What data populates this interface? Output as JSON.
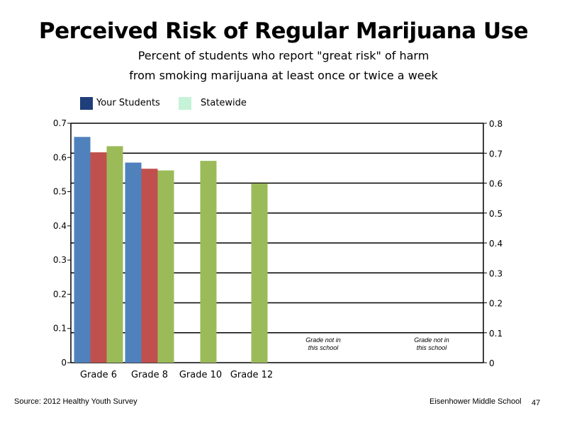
{
  "title": "Perceived Risk of Regular Marijuana Use",
  "subtitle_line1": "Percent of students who report \"great risk\" of harm",
  "subtitle_line2": "from smoking marijuana at least once or twice a week",
  "legend": [
    {
      "label": "Your Students",
      "color": "#1f3f7a"
    },
    {
      "label": "Statewide",
      "color": "#c6f2d8"
    }
  ],
  "chart_data": {
    "type": "bar",
    "title": "Perceived Risk of Regular Marijuana Use",
    "categories": [
      "Grade 6",
      "Grade 8",
      "Grade 10",
      "Grade 12"
    ],
    "series": [
      {
        "color": "#4f81bd",
        "values": [
          0.66,
          0.585,
          null,
          null
        ]
      },
      {
        "color": "#c0504d",
        "values": [
          0.615,
          0.567,
          null,
          null
        ]
      },
      {
        "color": "#9bbb59",
        "values": [
          0.633,
          0.562,
          0.59,
          0.524
        ]
      }
    ],
    "y_left": {
      "min": 0,
      "max": 0.7,
      "ticks": [
        "0",
        "0.1",
        "0.2",
        "0.3",
        "0.4",
        "0.5",
        "0.6",
        "0.7"
      ]
    },
    "y_right": {
      "min": 0,
      "max": 0.8,
      "ticks": [
        "0",
        "0.1",
        "0.2",
        "0.3",
        "0.4",
        "0.5",
        "0.6",
        "0.7",
        "0.8"
      ]
    },
    "gridlines": true,
    "notes": [
      {
        "line1": "Grade not in",
        "line2": "this school"
      },
      {
        "line1": "Grade not in",
        "line2": "this school"
      }
    ]
  },
  "footer": {
    "source": "Source: 2012 Healthy Youth Survey",
    "school": "Eisenhower Middle  School",
    "page": "47"
  }
}
